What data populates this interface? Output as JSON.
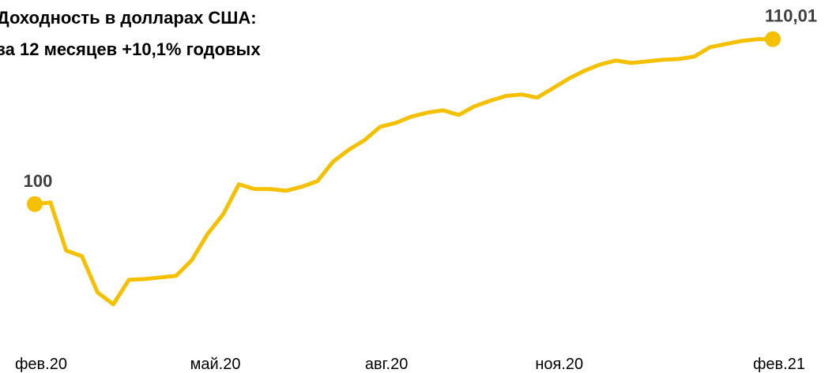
{
  "chart_data": {
    "type": "line",
    "title": [
      "Доходность в долларах США:",
      "за 12 месяцев +10,1% годовых"
    ],
    "series": [
      {
        "color": "#f5c000",
        "values": [
          100,
          100.1,
          97.18,
          96.84,
          94.64,
          93.92,
          95.41,
          95.45,
          95.55,
          95.65,
          96.6,
          98.18,
          99.38,
          101.2,
          100.91,
          100.91,
          100.81,
          101.05,
          101.39,
          102.58,
          103.3,
          103.88,
          104.69,
          104.93,
          105.31,
          105.55,
          105.69,
          105.41,
          105.93,
          106.27,
          106.56,
          106.65,
          106.46,
          107.03,
          107.61,
          108.09,
          108.47,
          108.71,
          108.56,
          108.66,
          108.76,
          108.8,
          108.95,
          109.52,
          109.71,
          109.9,
          110.0,
          110.01
        ],
        "value_labels": [
          "100",
          null,
          null,
          null,
          null,
          null,
          null,
          null,
          null,
          null,
          null,
          null,
          null,
          null,
          null,
          null,
          null,
          null,
          null,
          null,
          null,
          null,
          null,
          null,
          null,
          null,
          null,
          null,
          null,
          null,
          null,
          null,
          null,
          null,
          null,
          null,
          null,
          null,
          null,
          null,
          null,
          null,
          null,
          null,
          null,
          null,
          null,
          "110,01"
        ]
      }
    ],
    "xlim": [
      0,
      47
    ],
    "xticks": [
      {
        "value": 0.4,
        "label": "фев.20"
      },
      {
        "value": 11.5,
        "label": "май.20"
      },
      {
        "value": 22.4,
        "label": "авг.20"
      },
      {
        "value": 33.4,
        "label": "ноя.20"
      },
      {
        "value": 47.4,
        "label": "фев.21"
      }
    ],
    "ylim": [
      92,
      112
    ]
  }
}
